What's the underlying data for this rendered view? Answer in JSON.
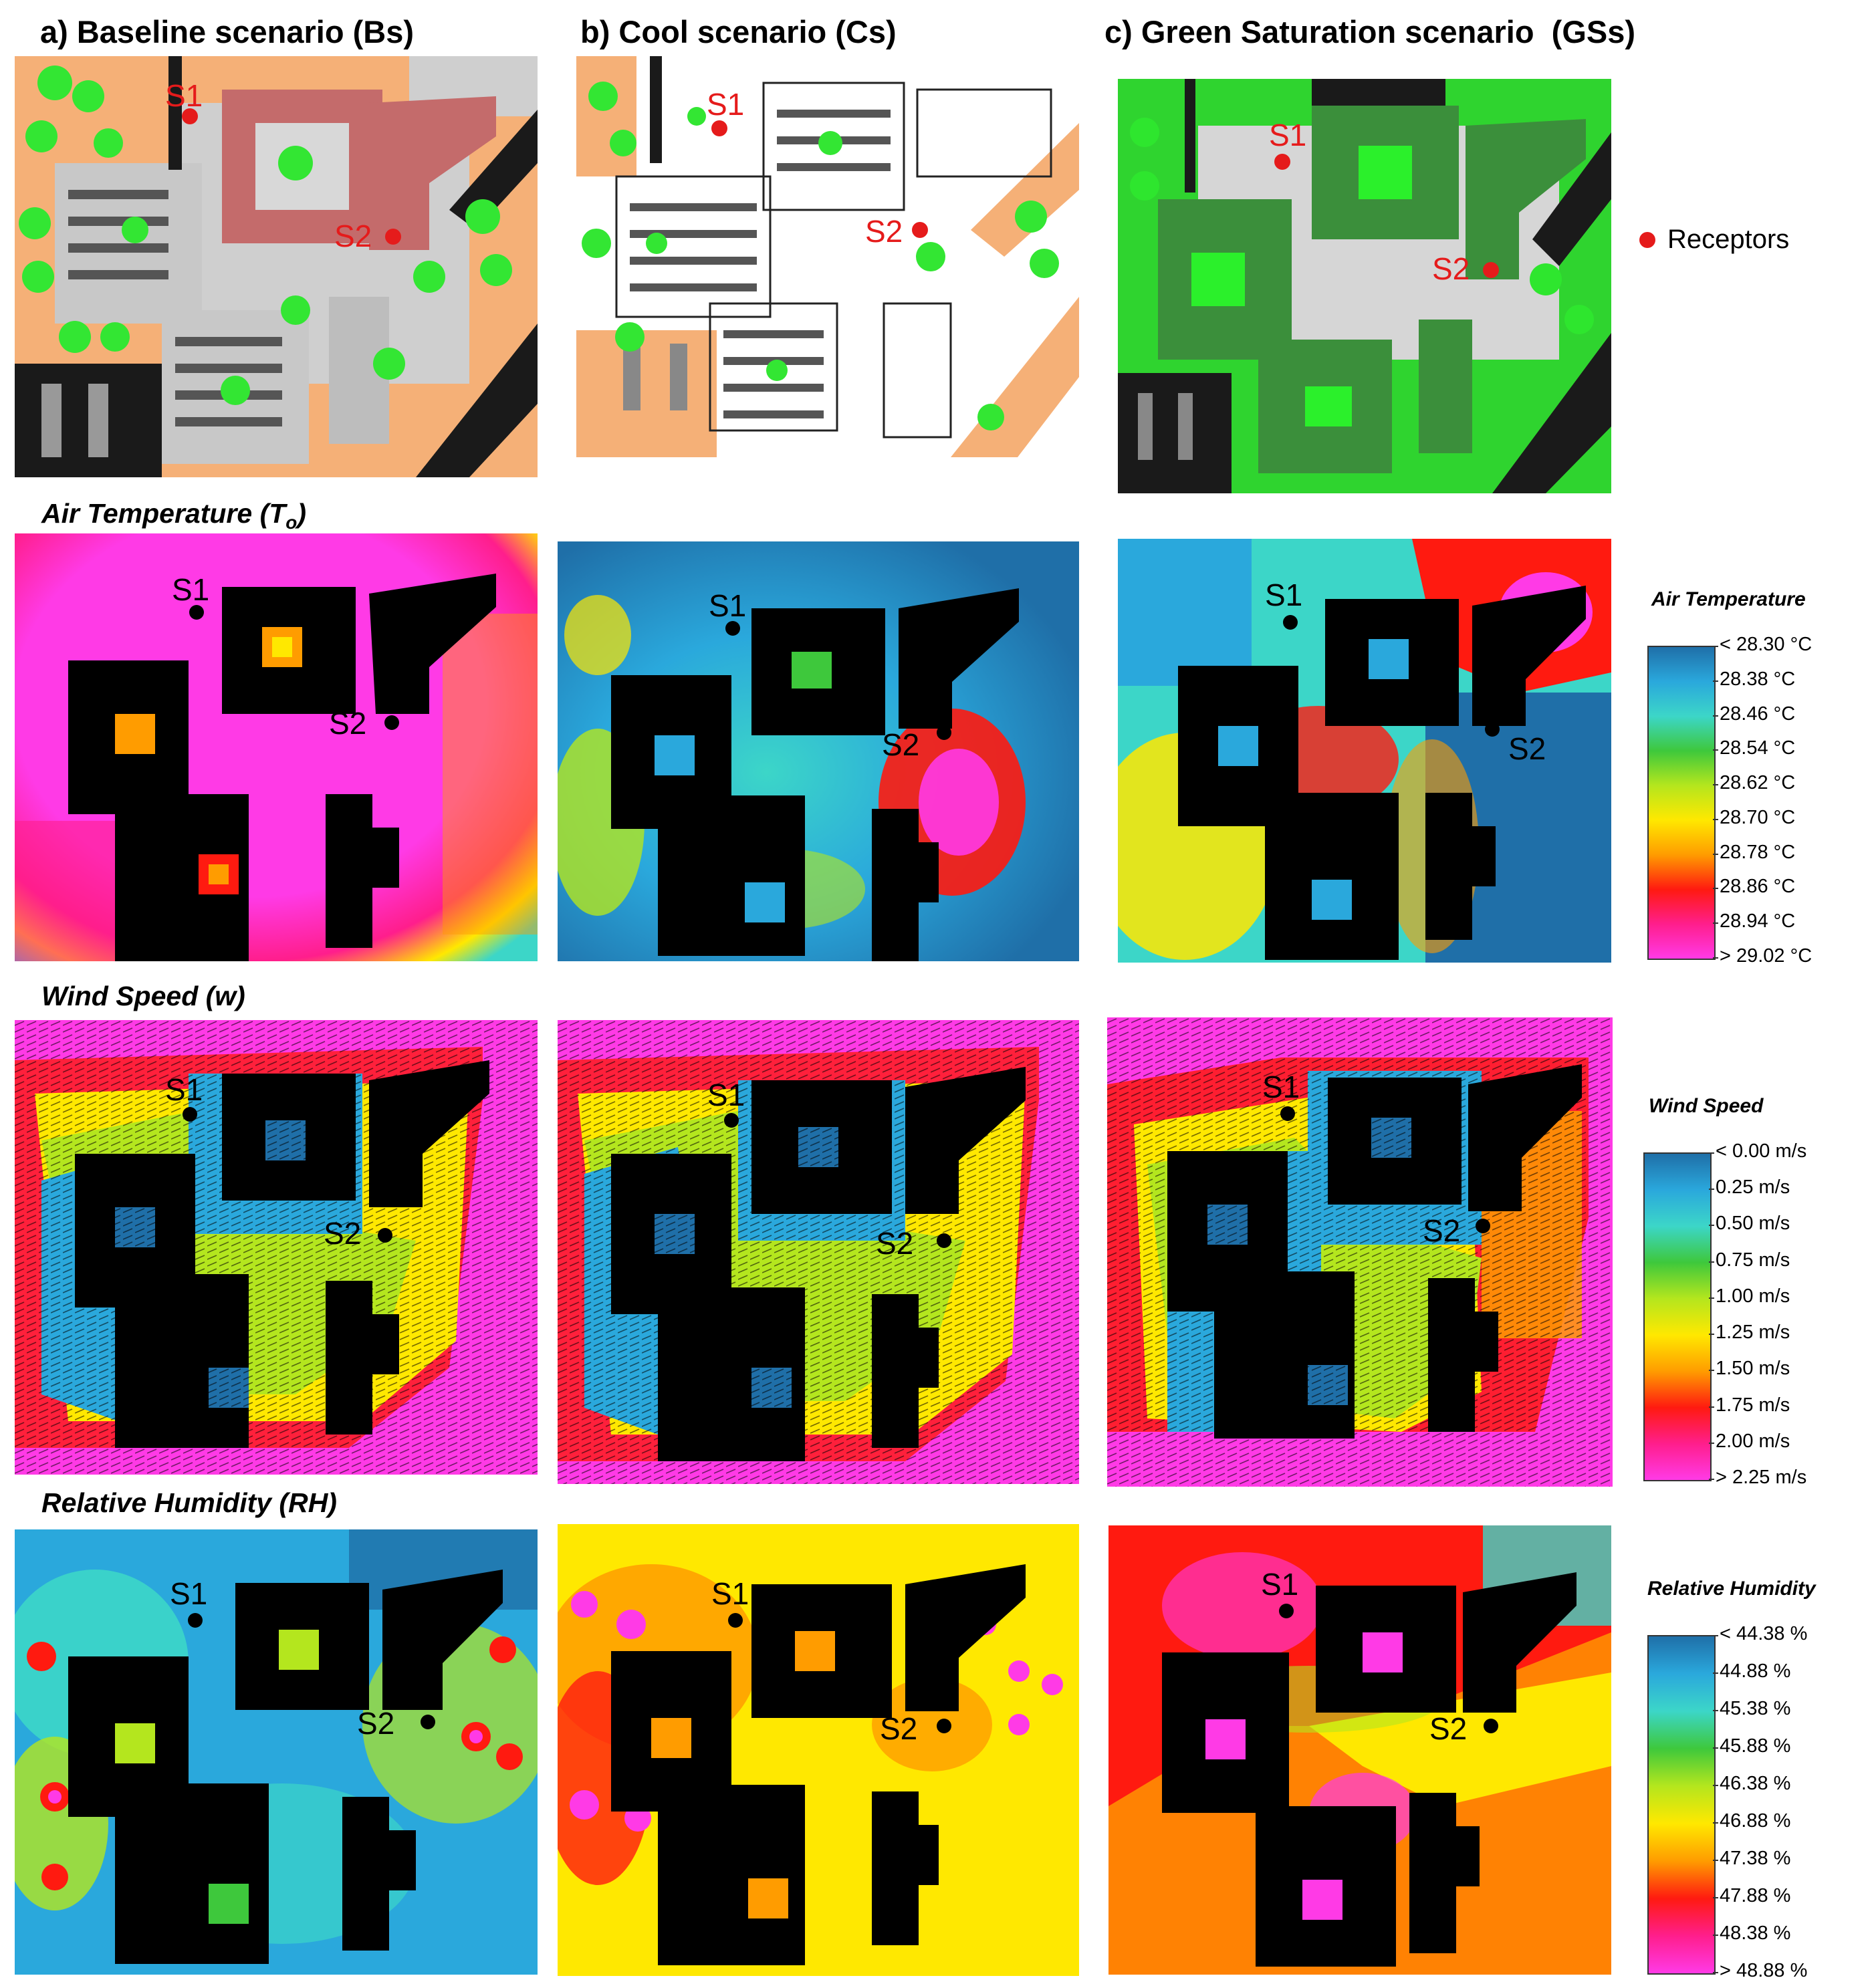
{
  "columns": [
    {
      "title": "a) Baseline scenario (Bs)"
    },
    {
      "title": "b) Cool scenario (Cs)"
    },
    {
      "title": "c) Green Saturation scenario",
      "abbr": "(GSs)"
    }
  ],
  "rows": {
    "air_temperature": {
      "title": "Air Temperature (T",
      "sub": "o",
      "suffix": ")"
    },
    "wind_speed": {
      "title": "Wind Speed (w)"
    },
    "relative_humidity": {
      "title": "Relative Humidity  (RH)"
    }
  },
  "receptor_labels": {
    "s1": "S1",
    "s2": "S2"
  },
  "legend_receptors": {
    "label": "Receptors",
    "color": "#e51b1b"
  },
  "legends": {
    "air_temperature": {
      "title": "Air Temperature",
      "ticks": [
        "< 28.30 °C",
        "28.38  °C",
        "28.46  °C",
        "28.54  °C",
        "28.62  °C",
        "28.70  °C",
        "28.78  °C",
        "28.86  °C",
        "28.94  °C",
        "> 29.02 °C"
      ]
    },
    "wind_speed": {
      "title": "Wind Speed",
      "ticks": [
        "< 0.00 m/s",
        "0.25  m/s",
        "0.50  m/s",
        "0.75  m/s",
        "1.00  m/s",
        "1.25  m/s",
        "1.50  m/s",
        "1.75  m/s",
        "2.00  m/s",
        "> 2.25 m/s"
      ]
    },
    "relative_humidity": {
      "title": "Relative Humidity",
      "ticks": [
        "< 44.38 %",
        "44.88  %",
        "45.38  %",
        "45.88  %",
        "46.38  %",
        "46.88  %",
        "47.38  %",
        "47.88  %",
        "48.38  %",
        "> 48.88 %"
      ]
    }
  },
  "colors": {
    "scale": [
      "#1f6fa8",
      "#2aa8dc",
      "#3cd6c8",
      "#3ec83c",
      "#b4e61e",
      "#ffe800",
      "#ff9c00",
      "#ff1a10",
      "#ff1e8c",
      "#ff3ae6"
    ],
    "building": "#000000",
    "tree": "#2ee62e",
    "baseline_ground": "#f5b077",
    "cool_ground": "#ffffff",
    "green_ground": "#2fd42f"
  }
}
